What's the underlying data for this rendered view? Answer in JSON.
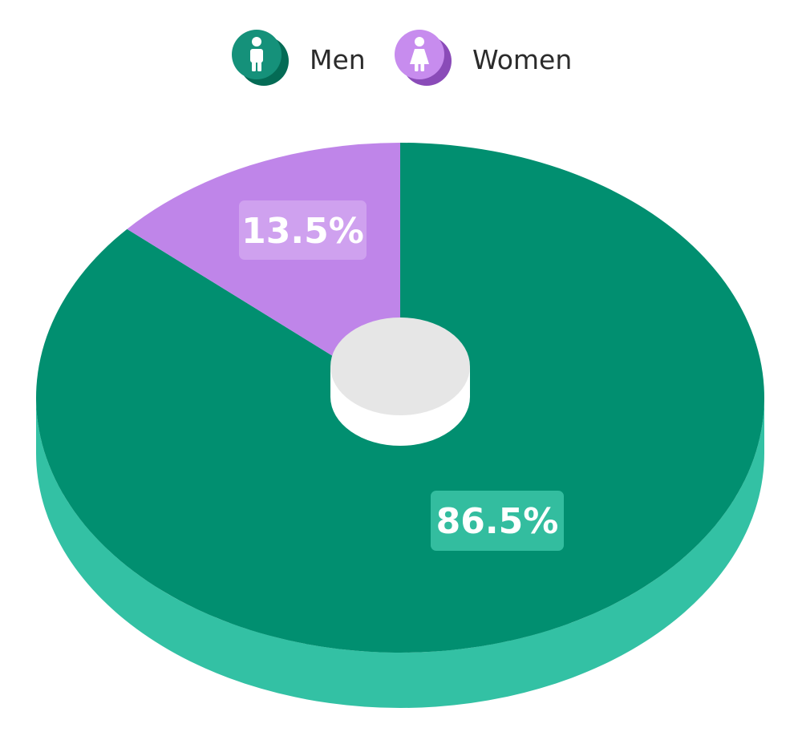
{
  "chart_data": {
    "type": "pie",
    "style": "3d-donut",
    "start": "top",
    "direction": "counter-clockwise-first-slice-left",
    "legend_position": "top-center",
    "series": [
      {
        "name": "Men",
        "value": 86.5,
        "label": "86.5%",
        "icon": "man-icon",
        "color": "#018f70",
        "side_color": "#33c1a4",
        "label_box_color": "#33bd9f",
        "legend_icon_color": "#15917a",
        "legend_icon_shadow": "#046b55"
      },
      {
        "name": "Women",
        "value": 13.5,
        "label": "13.5%",
        "icon": "woman-icon",
        "color": "#bf85e9",
        "side_color": "#a56fd1",
        "label_box_color": "#cfa1ef",
        "legend_icon_color": "#c78cee",
        "legend_icon_shadow": "#8a4bb8"
      }
    ],
    "hole_color": "#e6e6e6"
  }
}
